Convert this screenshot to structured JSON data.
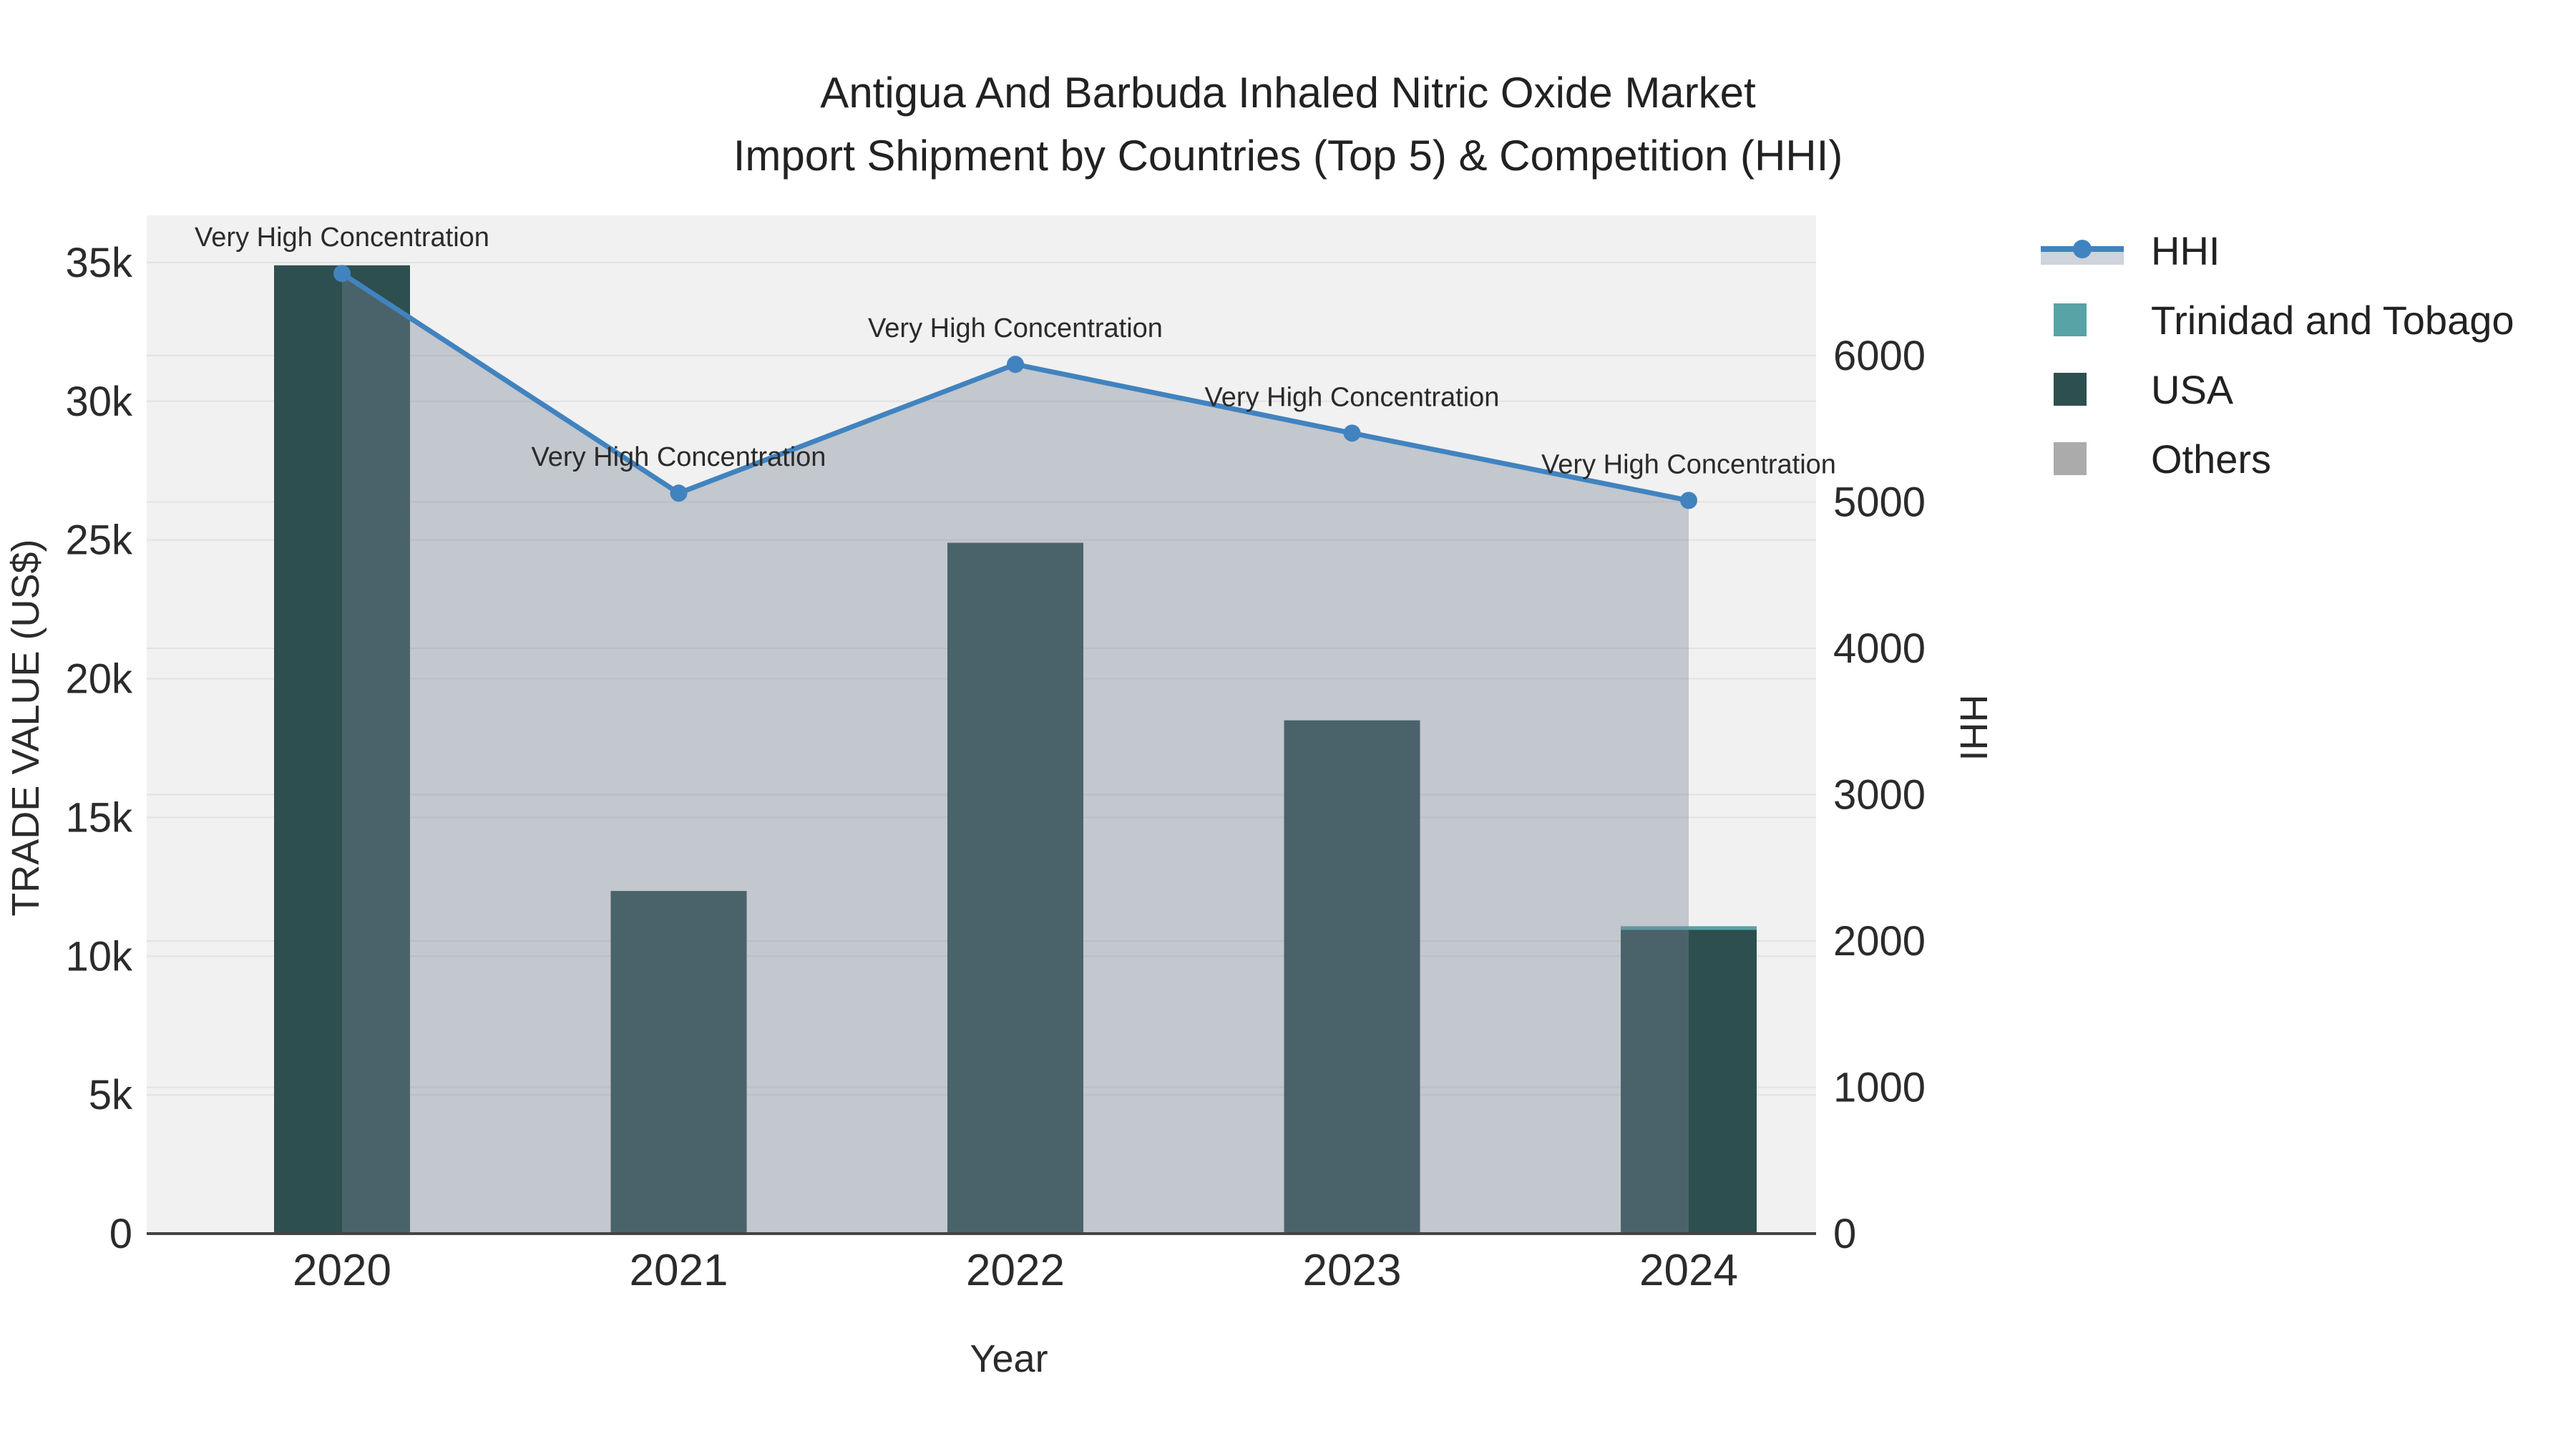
{
  "title": {
    "line1": "Antigua And Barbuda Inhaled Nitric Oxide Market",
    "line2": "Import Shipment by Countries (Top 5) & Competition (HHI)"
  },
  "axes": {
    "x": {
      "title": "Year",
      "tick_labels": [
        "2020",
        "2021",
        "2022",
        "2023",
        "2024"
      ]
    },
    "y_left": {
      "title": "TRADE VALUE (US$)",
      "tick_labels": [
        "0",
        "5k",
        "10k",
        "15k",
        "20k",
        "25k",
        "30k",
        "35k"
      ],
      "tick_values": [
        0,
        5000,
        10000,
        15000,
        20000,
        25000,
        30000,
        35000
      ]
    },
    "y_right": {
      "title": "HHI",
      "tick_labels": [
        "0",
        "1000",
        "2000",
        "3000",
        "4000",
        "5000",
        "6000"
      ],
      "tick_values": [
        0,
        1000,
        2000,
        3000,
        4000,
        5000,
        6000
      ]
    }
  },
  "legend": {
    "items": [
      {
        "label": "HHI",
        "type": "line"
      },
      {
        "label": "Trinidad and Tobago",
        "type": "swatch"
      },
      {
        "label": "USA",
        "type": "swatch"
      },
      {
        "label": "Others",
        "type": "swatch"
      }
    ]
  },
  "colors": {
    "hhi_line": "#4183bf",
    "hhi_fill": "rgba(120,132,150,0.38)",
    "hhi_legend_band": "#ced3dc",
    "trinidad": "#58a3a6",
    "usa": "#2e4f4f",
    "others": "#ababab",
    "plot_bg": "#f1f1f1",
    "gridline": "#e2e2e2",
    "axis_line": "#444444",
    "annotation_text": "#111111"
  },
  "chart_data": {
    "type": "combo (stacked bar + line, dual y-axis)",
    "categories": [
      "2020",
      "2021",
      "2022",
      "2023",
      "2024"
    ],
    "series": [
      {
        "name": "Trinidad and Tobago",
        "axis": "left",
        "kind": "bar",
        "values": [
          0,
          0,
          0,
          0,
          130
        ]
      },
      {
        "name": "USA",
        "axis": "left",
        "kind": "bar",
        "values": [
          34900,
          12350,
          24900,
          18500,
          10950
        ]
      },
      {
        "name": "Others",
        "axis": "left",
        "kind": "bar",
        "values": [
          0,
          0,
          0,
          0,
          0
        ]
      }
    ],
    "hhi": {
      "name": "HHI",
      "axis": "right",
      "kind": "line+area+markers",
      "values": [
        6561,
        5060,
        5940,
        5470,
        5010
      ],
      "point_annotations": [
        "Very High Concentration",
        "Very High Concentration",
        "Very High Concentration",
        "Very High Concentration",
        "Very High Concentration"
      ]
    },
    "title": "Antigua And Barbuda Inhaled Nitric Oxide Market Import Shipment by Countries (Top 5) & Competition (HHI)",
    "xlabel": "Year",
    "ylabel_left": "TRADE VALUE (US$)",
    "ylabel_right": "HHI",
    "ylim_left": [
      0,
      36700
    ],
    "ylim_right": [
      0,
      6958
    ],
    "grid": true,
    "legend_position": "top-right outside"
  }
}
